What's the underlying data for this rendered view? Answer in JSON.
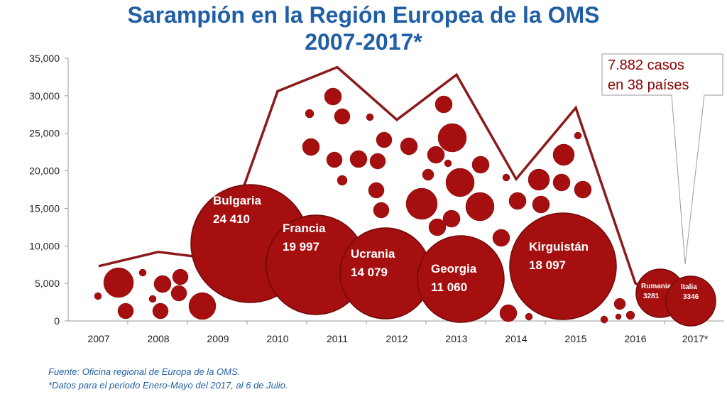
{
  "title": {
    "line1": "Sarampión en la Región Europea de la OMS",
    "line2": "2007-2017*"
  },
  "footnotes": {
    "source": "Fuente: Oficina regional de Europa de la OMS.",
    "note": "*Datos para el periodo Enero-Mayo del 2017, al 6 de Julio."
  },
  "callout": {
    "line1": "7.882 casos",
    "line2": "en 38 países"
  },
  "colors": {
    "title": "#1f5fa6",
    "line": "#8b1a1a",
    "bubble": "#a50f0f",
    "callout_text": "#8b0000"
  },
  "chart_data": {
    "type": "line",
    "categories": [
      "2007",
      "2008",
      "2009",
      "2010",
      "2011",
      "2012",
      "2013",
      "2014",
      "2015",
      "2016",
      "2017*"
    ],
    "values": [
      7300,
      9200,
      8200,
      30600,
      33800,
      26800,
      32800,
      18900,
      28400,
      5000,
      1500
    ],
    "ylim": [
      0,
      35000
    ],
    "yticks": [
      "0",
      "5,000",
      "10,000",
      "15,000",
      "20,000",
      "25,000",
      "30,000",
      "35,000"
    ],
    "grid": false,
    "labeled_bubbles": [
      {
        "name": "Bulgaria",
        "value": "24 410"
      },
      {
        "name": "Francia",
        "value": "19 997"
      },
      {
        "name": "Ucrania",
        "value": "14 079"
      },
      {
        "name": "Georgia",
        "value": "11 060"
      },
      {
        "name": "Kirguistán",
        "value": "18 097"
      },
      {
        "name": "Rumania",
        "value": "3281"
      },
      {
        "name": "Italia",
        "value": "3346"
      }
    ]
  }
}
